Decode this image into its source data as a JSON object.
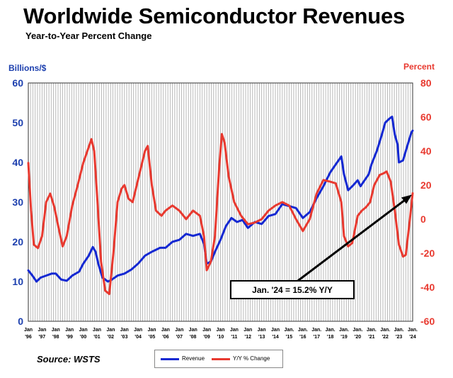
{
  "header": {
    "title": "Worldwide Semiconductor Revenues",
    "subtitle": "Year-to-Year Percent Change"
  },
  "source": "Source: WSTS",
  "colors": {
    "revenue": "#1428d2",
    "yoy": "#e8392f",
    "text_left": "#1c3fae",
    "text_right": "#e8392f"
  },
  "chart_data": {
    "type": "line",
    "title": "Worldwide Semiconductor Revenues",
    "subtitle": "Year-to-Year Percent Change",
    "left_axis": {
      "label": "Billions/$",
      "range": [
        0,
        60
      ],
      "ticks": [
        0,
        10,
        20,
        30,
        40,
        50,
        60
      ]
    },
    "right_axis": {
      "label": "Percent",
      "range": [
        -60,
        80
      ],
      "ticks": [
        -60,
        -40,
        -20,
        0,
        20,
        40,
        60,
        80
      ]
    },
    "x_range": [
      1996,
      2024
    ],
    "x_ticks": [
      {
        "l1": "Jan",
        "l2": "'96"
      },
      {
        "l1": "Jan",
        "l2": "'97"
      },
      {
        "l1": "Jan",
        "l2": "'98"
      },
      {
        "l1": "Jan",
        "l2": "'99"
      },
      {
        "l1": "Jan",
        "l2": "'00"
      },
      {
        "l1": "Jan",
        "l2": "'01"
      },
      {
        "l1": "Jan",
        "l2": "'02"
      },
      {
        "l1": "Jan",
        "l2": "'03"
      },
      {
        "l1": "Jan",
        "l2": "'04"
      },
      {
        "l1": "Jan",
        "l2": "'05"
      },
      {
        "l1": "Jan",
        "l2": "'06"
      },
      {
        "l1": "Jan",
        "l2": "'07"
      },
      {
        "l1": "Jan",
        "l2": "'08"
      },
      {
        "l1": "Jan",
        "l2": "'09"
      },
      {
        "l1": "Jan",
        "l2": "'10"
      },
      {
        "l1": "Jan",
        "l2": "'11"
      },
      {
        "l1": "Jan",
        "l2": "'12"
      },
      {
        "l1": "Jan",
        "l2": "'13"
      },
      {
        "l1": "Jan",
        "l2": "'14"
      },
      {
        "l1": "Jan.",
        "l2": "'15"
      },
      {
        "l1": "Jan.",
        "l2": "'16"
      },
      {
        "l1": "Jan.",
        "l2": "'17"
      },
      {
        "l1": "Jan.",
        "l2": "'18"
      },
      {
        "l1": "Jan.",
        "l2": "'19"
      },
      {
        "l1": "Jan.",
        "l2": "'20"
      },
      {
        "l1": "Jan.",
        "l2": "'21"
      },
      {
        "l1": "Jan.",
        "l2": "'22"
      },
      {
        "l1": "Jan.",
        "l2": "'23"
      },
      {
        "l1": "Jan.",
        "l2": "'24"
      }
    ],
    "series": [
      {
        "name": "Revenue",
        "axis": "left",
        "color": "#1428d2",
        "points": [
          [
            1996.0,
            12.8
          ],
          [
            1996.3,
            11.5
          ],
          [
            1996.6,
            10.0
          ],
          [
            1996.9,
            11.0
          ],
          [
            1997.3,
            11.5
          ],
          [
            1997.7,
            12.0
          ],
          [
            1998.0,
            12.0
          ],
          [
            1998.4,
            10.5
          ],
          [
            1998.8,
            10.2
          ],
          [
            1999.2,
            11.5
          ],
          [
            1999.7,
            12.5
          ],
          [
            2000.0,
            14.5
          ],
          [
            2000.4,
            16.5
          ],
          [
            2000.7,
            18.7
          ],
          [
            2000.9,
            17.5
          ],
          [
            2001.1,
            14.5
          ],
          [
            2001.4,
            11.0
          ],
          [
            2001.8,
            10.0
          ],
          [
            2002.0,
            10.3
          ],
          [
            2002.5,
            11.5
          ],
          [
            2003.0,
            12.0
          ],
          [
            2003.5,
            13.0
          ],
          [
            2004.0,
            14.5
          ],
          [
            2004.5,
            16.5
          ],
          [
            2005.0,
            17.5
          ],
          [
            2005.6,
            18.5
          ],
          [
            2006.0,
            18.5
          ],
          [
            2006.5,
            20.0
          ],
          [
            2007.0,
            20.5
          ],
          [
            2007.5,
            22.0
          ],
          [
            2008.0,
            21.5
          ],
          [
            2008.5,
            22.0
          ],
          [
            2008.8,
            19.5
          ],
          [
            2009.0,
            14.5
          ],
          [
            2009.3,
            15.0
          ],
          [
            2009.6,
            17.5
          ],
          [
            2010.0,
            20.5
          ],
          [
            2010.4,
            24.0
          ],
          [
            2010.8,
            26.0
          ],
          [
            2011.2,
            25.0
          ],
          [
            2011.6,
            25.5
          ],
          [
            2012.0,
            23.5
          ],
          [
            2012.5,
            25.0
          ],
          [
            2013.0,
            24.5
          ],
          [
            2013.5,
            26.5
          ],
          [
            2014.0,
            27.0
          ],
          [
            2014.5,
            29.5
          ],
          [
            2015.0,
            29.0
          ],
          [
            2015.5,
            28.5
          ],
          [
            2016.0,
            26.0
          ],
          [
            2016.5,
            27.5
          ],
          [
            2017.0,
            31.0
          ],
          [
            2017.5,
            34.0
          ],
          [
            2018.0,
            37.5
          ],
          [
            2018.5,
            40.0
          ],
          [
            2018.8,
            41.5
          ],
          [
            2019.0,
            37.0
          ],
          [
            2019.3,
            33.0
          ],
          [
            2019.6,
            34.0
          ],
          [
            2020.0,
            35.5
          ],
          [
            2020.2,
            34.0
          ],
          [
            2020.5,
            35.5
          ],
          [
            2020.8,
            37.0
          ],
          [
            2021.0,
            39.5
          ],
          [
            2021.4,
            43.0
          ],
          [
            2021.8,
            47.5
          ],
          [
            2022.0,
            50.0
          ],
          [
            2022.3,
            51.0
          ],
          [
            2022.5,
            51.5
          ],
          [
            2022.7,
            47.0
          ],
          [
            2022.9,
            44.5
          ],
          [
            2023.0,
            40.0
          ],
          [
            2023.3,
            40.5
          ],
          [
            2023.6,
            44.0
          ],
          [
            2023.9,
            47.5
          ],
          [
            2024.0,
            48.0
          ]
        ]
      },
      {
        "name": "Y/Y % Change",
        "axis": "right",
        "color": "#e8392f",
        "points": [
          [
            1996.0,
            33
          ],
          [
            1996.2,
            5
          ],
          [
            1996.4,
            -15
          ],
          [
            1996.7,
            -17
          ],
          [
            1997.0,
            -10
          ],
          [
            1997.3,
            10
          ],
          [
            1997.6,
            15
          ],
          [
            1997.9,
            7
          ],
          [
            1998.2,
            -5
          ],
          [
            1998.5,
            -16
          ],
          [
            1998.8,
            -10
          ],
          [
            1999.2,
            8
          ],
          [
            1999.6,
            20
          ],
          [
            2000.0,
            33
          ],
          [
            2000.3,
            40
          ],
          [
            2000.6,
            47
          ],
          [
            2000.8,
            40
          ],
          [
            2001.0,
            15
          ],
          [
            2001.3,
            -25
          ],
          [
            2001.6,
            -42
          ],
          [
            2001.9,
            -44
          ],
          [
            2002.2,
            -20
          ],
          [
            2002.5,
            10
          ],
          [
            2002.8,
            18
          ],
          [
            2003.0,
            20
          ],
          [
            2003.3,
            12
          ],
          [
            2003.6,
            10
          ],
          [
            2003.9,
            20
          ],
          [
            2004.2,
            30
          ],
          [
            2004.5,
            40
          ],
          [
            2004.7,
            43
          ],
          [
            2005.0,
            20
          ],
          [
            2005.3,
            5
          ],
          [
            2005.7,
            2
          ],
          [
            2006.0,
            5
          ],
          [
            2006.5,
            8
          ],
          [
            2007.0,
            5
          ],
          [
            2007.5,
            0
          ],
          [
            2008.0,
            5
          ],
          [
            2008.5,
            2
          ],
          [
            2008.8,
            -10
          ],
          [
            2009.0,
            -30
          ],
          [
            2009.3,
            -25
          ],
          [
            2009.6,
            -10
          ],
          [
            2009.9,
            30
          ],
          [
            2010.1,
            50
          ],
          [
            2010.3,
            45
          ],
          [
            2010.6,
            25
          ],
          [
            2011.0,
            10
          ],
          [
            2011.5,
            2
          ],
          [
            2012.0,
            -3
          ],
          [
            2012.5,
            -2
          ],
          [
            2013.0,
            0
          ],
          [
            2013.5,
            5
          ],
          [
            2014.0,
            8
          ],
          [
            2014.5,
            10
          ],
          [
            2015.0,
            8
          ],
          [
            2015.5,
            0
          ],
          [
            2016.0,
            -7
          ],
          [
            2016.5,
            0
          ],
          [
            2017.0,
            15
          ],
          [
            2017.5,
            23
          ],
          [
            2018.0,
            22
          ],
          [
            2018.4,
            21
          ],
          [
            2018.8,
            10
          ],
          [
            2019.0,
            -10
          ],
          [
            2019.3,
            -16
          ],
          [
            2019.6,
            -14
          ],
          [
            2020.0,
            2
          ],
          [
            2020.3,
            5
          ],
          [
            2020.6,
            7
          ],
          [
            2020.9,
            10
          ],
          [
            2021.2,
            20
          ],
          [
            2021.6,
            26
          ],
          [
            2021.9,
            27
          ],
          [
            2022.1,
            28
          ],
          [
            2022.4,
            22
          ],
          [
            2022.7,
            5
          ],
          [
            2023.0,
            -15
          ],
          [
            2023.3,
            -22
          ],
          [
            2023.5,
            -21
          ],
          [
            2023.8,
            0
          ],
          [
            2024.0,
            15.2
          ]
        ]
      }
    ],
    "annotations": [
      {
        "text": "Jan. '24 = 15.2% Y/Y",
        "x": 2024.0,
        "y": 15.2,
        "axis": "right",
        "style": "boxed-arrow"
      }
    ],
    "legend": [
      {
        "label": "Revenue",
        "color": "#1428d2"
      },
      {
        "label": "Y/Y % Change",
        "color": "#e8392f"
      }
    ],
    "grid": {
      "vertical": "monthly-dense",
      "horizontal": false
    }
  }
}
